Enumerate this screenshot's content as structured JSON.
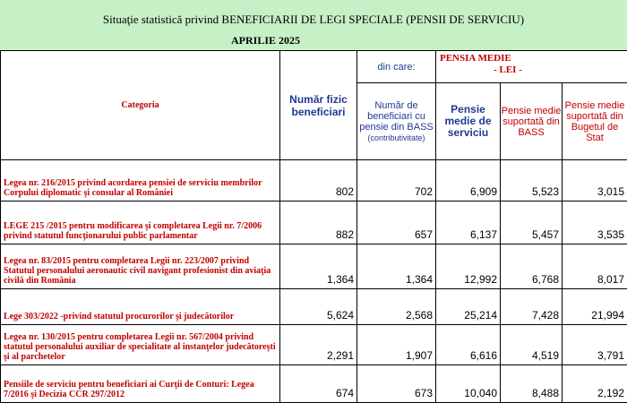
{
  "title": "Situaţie statistică privind BENEFICIARII DE LEGI SPECIALE (PENSII DE SERVICIU)",
  "subtitle": "APRILIE 2025",
  "headers": {
    "category": "Categoria",
    "nr_fizic": "Număr fizic beneficiari",
    "din_care": "din care:",
    "pensia_medie": "PENSIA MEDIE",
    "lei": "- LEI -",
    "nr_bass": "Număr de beneficiari cu pensie din BASS",
    "nr_bass_note": "(contributivitate)",
    "pensie_medie_serviciu": "Pensie medie de serviciu",
    "pensie_bass": "Pensie medie suportată din BASS",
    "pensie_buget": "Pensie medie suportată din Bugetul de Stat"
  },
  "rows": [
    {
      "category": "Legea nr. 216/2015 privind acordarea pensiei de serviciu membrilor Corpului diplomatic şi consular al României",
      "nr_fizic": "802",
      "nr_bass": "702",
      "pm_serviciu": "6,909",
      "pm_bass": "5,523",
      "pm_buget": "3,015"
    },
    {
      "category": "LEGE 215 /2015  pentru modificarea şi completarea Legii nr. 7/2006 privind statutul funcţionarului public parlamentar",
      "nr_fizic": "882",
      "nr_bass": "657",
      "pm_serviciu": "6,137",
      "pm_bass": "5,457",
      "pm_buget": "3,535"
    },
    {
      "category": " Legea nr. 83/2015 pentru completarea Legii nr. 223/2007 privind Statutul personalului aeronautic civil navigant profesionist din aviaţia civilă din România",
      "nr_fizic": "1,364",
      "nr_bass": "1,364",
      "pm_serviciu": "12,992",
      "pm_bass": "6,768",
      "pm_buget": "8,017"
    },
    {
      "category": "Lege 303/2022 -privind statutul procurorilor şi judecătorilor",
      "nr_fizic": "5,624",
      "nr_bass": "2,568",
      "pm_serviciu": "25,214",
      "pm_bass": "7,428",
      "pm_buget": "21,994"
    },
    {
      "category": " Legea nr. 130/2015 pentru completarea Legii nr. 567/2004 privind statutul personalului auxiliar de specialitate al instanţelor judecătoreşti şi al parchetelor",
      "nr_fizic": "2,291",
      "nr_bass": "1,907",
      "pm_serviciu": "6,616",
      "pm_bass": "4,519",
      "pm_buget": "3,791"
    },
    {
      "category": "Pensiile de serviciu pentru beneficiari ai Curţii de Conturi: Legea 7/2016 şi  Decizia CCR 297/2012",
      "nr_fizic": "674",
      "nr_bass": "673",
      "pm_serviciu": "10,040",
      "pm_bass": "8,488",
      "pm_buget": "2,192"
    }
  ]
}
